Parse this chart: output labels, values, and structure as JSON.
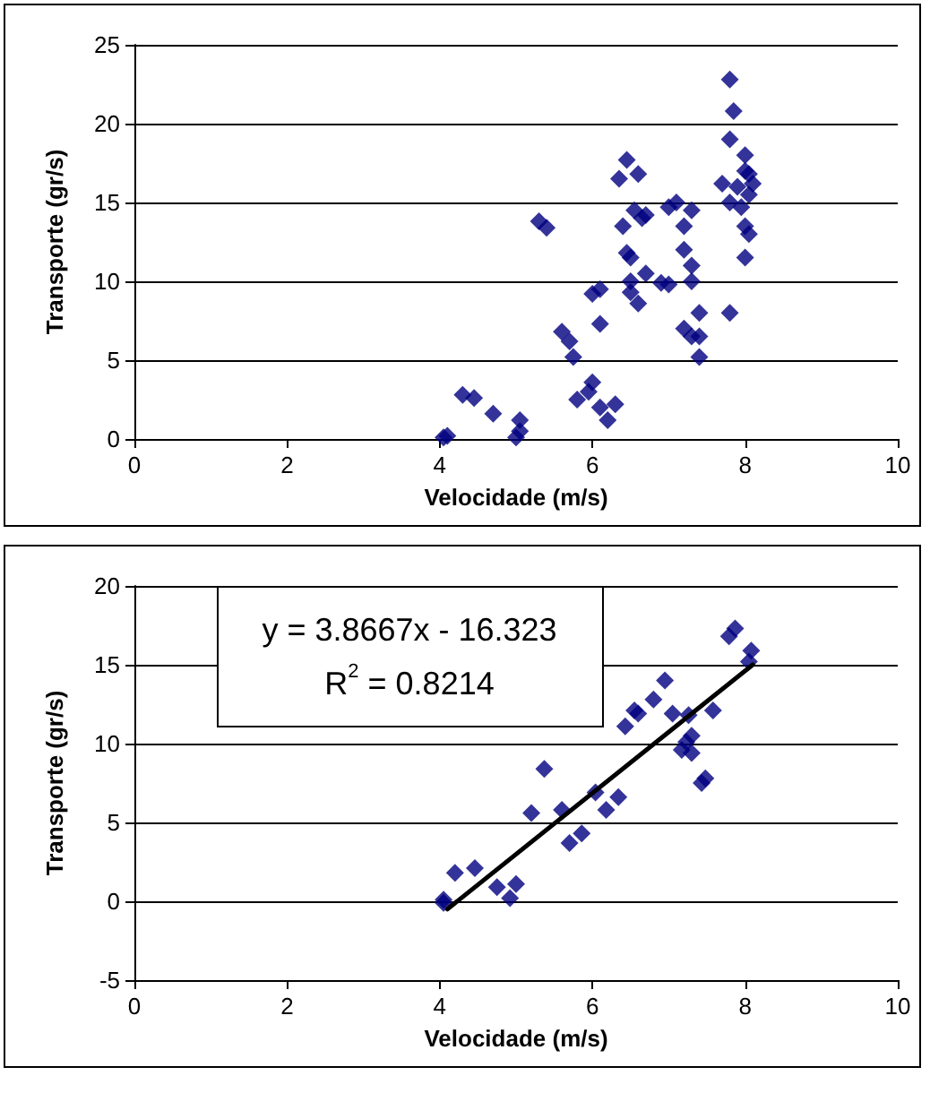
{
  "chart_data": [
    {
      "type": "scatter",
      "xlabel": "Velocidade (m/s)",
      "ylabel": "Transporte (gr/s)",
      "xlim": [
        0,
        10
      ],
      "xticks": [
        0,
        2,
        4,
        6,
        8,
        10
      ],
      "ylim": [
        0,
        25
      ],
      "yticks": [
        0,
        5,
        10,
        15,
        20,
        25
      ],
      "grid": "y",
      "marker": "diamond",
      "series": [
        {
          "color": "#000080",
          "x": [
            4.05,
            4.1,
            4.3,
            4.45,
            4.7,
            5.0,
            5.05,
            5.05,
            5.3,
            5.4,
            5.6,
            5.7,
            5.75,
            5.8,
            5.95,
            6.0,
            6.0,
            6.1,
            6.1,
            6.1,
            6.2,
            6.3,
            6.35,
            6.45,
            6.4,
            6.45,
            6.5,
            6.5,
            6.5,
            6.55,
            6.6,
            6.65,
            6.7,
            6.7,
            6.6,
            6.9,
            7.0,
            7.1,
            7.2,
            7.3,
            7.2,
            7.3,
            7.3,
            7.2,
            7.3,
            7.4,
            7.4,
            7.4,
            7.0,
            7.8,
            7.85,
            7.8,
            7.9,
            7.7,
            7.8,
            8.0,
            8.0,
            8.05,
            8.1,
            8.05,
            7.95,
            8.0,
            8.05,
            8.0,
            7.8
          ],
          "values": [
            0.1,
            0.2,
            2.8,
            2.6,
            1.6,
            0.1,
            0.5,
            1.2,
            13.8,
            13.4,
            6.8,
            6.2,
            5.2,
            2.5,
            3.0,
            3.6,
            9.2,
            9.5,
            7.3,
            2.0,
            1.2,
            2.2,
            16.5,
            17.7,
            13.5,
            11.8,
            11.5,
            10.0,
            9.3,
            14.5,
            16.8,
            14.0,
            14.2,
            10.5,
            8.6,
            9.9,
            14.7,
            15.0,
            13.5,
            14.5,
            12.0,
            11.0,
            10.0,
            7.0,
            6.5,
            8.0,
            5.2,
            6.5,
            9.8,
            22.8,
            20.8,
            19.0,
            16.0,
            16.2,
            15.0,
            18.0,
            17.0,
            16.8,
            16.2,
            15.5,
            14.7,
            13.5,
            13.0,
            11.5,
            8.0
          ]
        }
      ]
    },
    {
      "type": "scatter",
      "xlabel": "Velocidade (m/s)",
      "ylabel": "Transporte (gr/s)",
      "xlim": [
        0,
        10
      ],
      "xticks": [
        0,
        2,
        4,
        6,
        8,
        10
      ],
      "ylim": [
        -5,
        20
      ],
      "yticks": [
        -5,
        0,
        5,
        10,
        15,
        20
      ],
      "grid": "y",
      "marker": "diamond",
      "annotations": [
        "y = 3.8667x - 16.323",
        "R$^{2}$ = 0.8214"
      ],
      "series": [
        {
          "color": "#000080",
          "x": [
            4.05,
            4.05,
            4.2,
            4.46,
            4.75,
            5.0,
            4.92,
            5.2,
            5.37,
            5.6,
            5.7,
            5.86,
            6.04,
            6.18,
            6.34,
            6.43,
            6.55,
            6.6,
            6.8,
            6.95,
            7.05,
            7.26,
            7.58,
            7.3,
            7.17,
            7.3,
            7.23,
            7.48,
            7.43,
            7.87,
            7.79,
            8.08,
            8.05
          ],
          "values": [
            0.1,
            -0.1,
            1.8,
            2.1,
            0.9,
            1.1,
            0.2,
            5.6,
            8.4,
            5.8,
            3.7,
            4.3,
            6.9,
            5.8,
            6.6,
            11.1,
            12.1,
            11.9,
            12.8,
            14.0,
            11.9,
            11.8,
            12.1,
            10.5,
            9.6,
            9.4,
            10.1,
            7.8,
            7.5,
            17.3,
            16.8,
            15.9,
            15.2
          ]
        },
        {
          "type": "line",
          "color": "#000000",
          "marker": "none",
          "line_style": "solid",
          "x": [
            4.1,
            8.1
          ],
          "values": [
            -0.5,
            15.0
          ]
        }
      ]
    }
  ]
}
